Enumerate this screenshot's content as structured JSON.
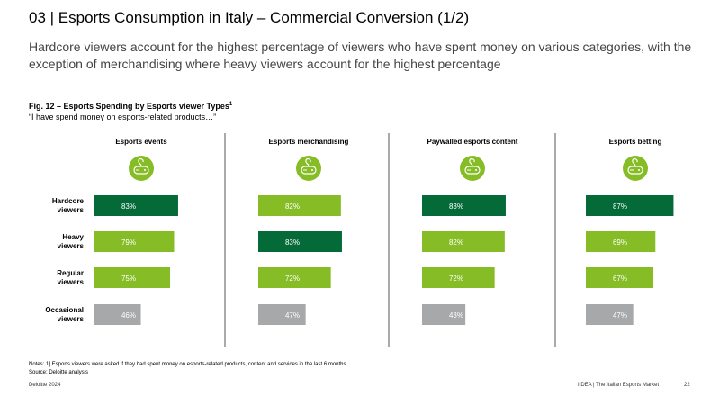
{
  "header": {
    "title": "03 | Esports Consumption in Italy – Commercial Conversion (1/2)",
    "subtitle": "Hardcore viewers account for the highest percentage of viewers who have spent money on various categories, with the exception of merchandising where heavy viewers account for the highest percentage"
  },
  "figure": {
    "title": "Fig. 12 – Esports Spending by Esports viewer Types",
    "title_sup": "1",
    "subtitle": "“I have spend money on esports-related products…”"
  },
  "chart_data": {
    "type": "bar",
    "orientation": "horizontal",
    "title": "Fig. 12 – Esports Spending by Esports viewer Types",
    "categories": [
      "Hardcore viewers",
      "Heavy viewers",
      "Regular viewers",
      "Occasional viewers"
    ],
    "xlim": [
      0,
      100
    ],
    "value_suffix": "%",
    "colors": {
      "highest": "#046a38",
      "mid": "#86bc25",
      "lowest": "#a7a8aa",
      "icon": "#86bc25",
      "divider": "#555555"
    },
    "panels": [
      {
        "name": "Esports events",
        "values": [
          83,
          79,
          75,
          46
        ]
      },
      {
        "name": "Esports merchandising",
        "values": [
          82,
          83,
          72,
          47
        ]
      },
      {
        "name": "Paywalled esports content",
        "values": [
          83,
          82,
          72,
          43
        ]
      },
      {
        "name": "Esports betting",
        "values": [
          87,
          69,
          67,
          47
        ]
      }
    ],
    "category_labels": [
      [
        "Hardcore",
        "viewers"
      ],
      [
        "Heavy",
        "viewers"
      ],
      [
        "Regular",
        "viewers"
      ],
      [
        "Occasional",
        "viewers"
      ]
    ],
    "icon": "game-controller-icon"
  },
  "notes": {
    "line1": "Notes: 1] Esports viewers were asked if they had spent money on esports-related products, content and services in the last 6 months.",
    "line2": "Source: Deloitte analysis"
  },
  "footer": {
    "left": "Deloitte 2024",
    "right": "IIDEA | The Italian Esports Market",
    "page": "22"
  }
}
